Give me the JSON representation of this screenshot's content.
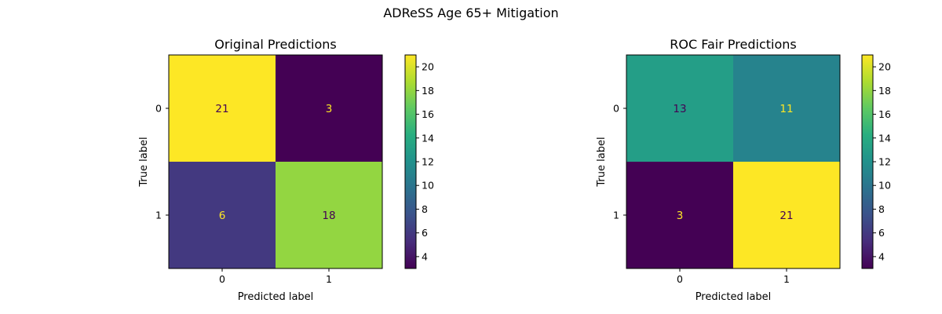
{
  "figure": {
    "title": "ADReSS Age 65+ Mitigation"
  },
  "chart_data": [
    {
      "type": "heatmap",
      "title": "Original Predictions",
      "xlabel": "Predicted label",
      "ylabel": "True label",
      "x_categories": [
        "0",
        "1"
      ],
      "y_categories": [
        "0",
        "1"
      ],
      "matrix": [
        [
          21,
          3
        ],
        [
          6,
          18
        ]
      ],
      "colormap": "viridis",
      "colorbar": {
        "range": [
          3,
          21
        ],
        "ticks": [
          4,
          6,
          8,
          10,
          12,
          14,
          16,
          18,
          20
        ]
      },
      "grid": false
    },
    {
      "type": "heatmap",
      "title": "ROC Fair Predictions",
      "xlabel": "Predicted label",
      "ylabel": "True label",
      "x_categories": [
        "0",
        "1"
      ],
      "y_categories": [
        "0",
        "1"
      ],
      "matrix": [
        [
          13,
          11
        ],
        [
          3,
          21
        ]
      ],
      "colormap": "viridis",
      "colorbar": {
        "range": [
          3,
          21
        ],
        "ticks": [
          4,
          6,
          8,
          10,
          12,
          14,
          16,
          18,
          20
        ]
      },
      "grid": false
    }
  ]
}
